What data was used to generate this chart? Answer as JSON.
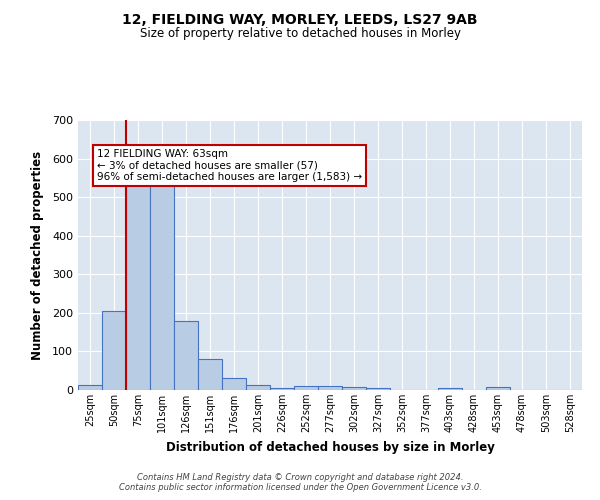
{
  "title1": "12, FIELDING WAY, MORLEY, LEEDS, LS27 9AB",
  "title2": "Size of property relative to detached houses in Morley",
  "xlabel": "Distribution of detached houses by size in Morley",
  "ylabel": "Number of detached properties",
  "categories": [
    "25sqm",
    "50sqm",
    "75sqm",
    "101sqm",
    "126sqm",
    "151sqm",
    "176sqm",
    "201sqm",
    "226sqm",
    "252sqm",
    "277sqm",
    "302sqm",
    "327sqm",
    "352sqm",
    "377sqm",
    "403sqm",
    "428sqm",
    "453sqm",
    "478sqm",
    "503sqm",
    "528sqm"
  ],
  "values": [
    12,
    204,
    553,
    560,
    178,
    80,
    30,
    14,
    5,
    10,
    10,
    8,
    5,
    0,
    0,
    5,
    0,
    7,
    0,
    0,
    0
  ],
  "bar_color": "#b8cce4",
  "bar_edge_color": "#4472c4",
  "bg_color": "#dce6f1",
  "grid_color": "#ffffff",
  "vline_color": "#c00000",
  "annotation_text": "12 FIELDING WAY: 63sqm\n← 3% of detached houses are smaller (57)\n96% of semi-detached houses are larger (1,583) →",
  "annotation_box_color": "#ffffff",
  "annotation_box_edge": "#c00000",
  "ylim": [
    0,
    700
  ],
  "yticks": [
    0,
    100,
    200,
    300,
    400,
    500,
    600,
    700
  ],
  "footer": "Contains HM Land Registry data © Crown copyright and database right 2024.\nContains public sector information licensed under the Open Government Licence v3.0."
}
